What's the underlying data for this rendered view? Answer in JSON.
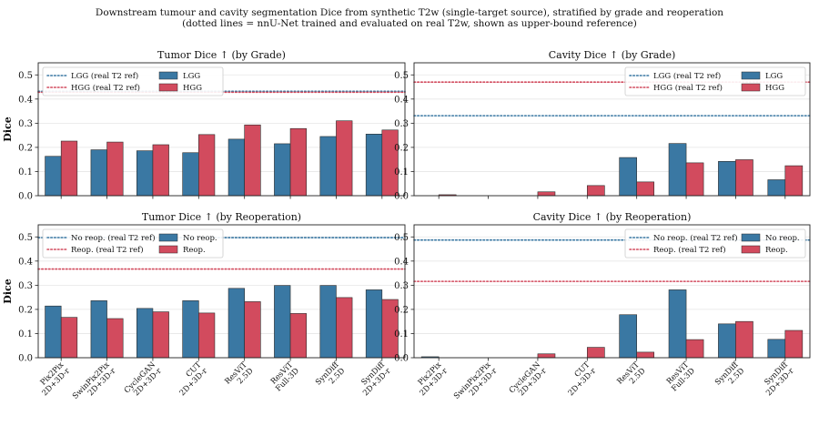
{
  "figure": {
    "title_line1": "Downstream tumour and cavity segmentation Dice from synthetic T2w (single-target source), stratified by grade and reoperation",
    "title_line2": "(dotted lines = nnU-Net trained and evaluated on real T2w, shown as upper-bound reference)"
  },
  "colors": {
    "blue": "#3a78a3",
    "red": "#d24b5e"
  },
  "chart_data": [
    {
      "type": "bar",
      "title": "Tumor Dice ↑  (by Grade)",
      "ylabel": "Dice",
      "ylim": [
        0,
        0.55
      ],
      "yticks": [
        "0.0",
        "0.1",
        "0.2",
        "0.3",
        "0.4",
        "0.5"
      ],
      "grid": true,
      "legend": "top-left",
      "categories": [
        "Pix2Pix\n2D+3D-r",
        "SwinPix2Pix\n2D+3D-r",
        "CycleGAN\n2D+3D-r",
        "CUT\n2D+3D-r",
        "ResViT\n2.5D",
        "ResViT\nFull-3D",
        "SynDiff\n2.5D",
        "SynDiff\n2D+3D-r"
      ],
      "show_xticklabels": false,
      "series": [
        {
          "name": "LGG",
          "color": "#3a78a3",
          "values": [
            0.163,
            0.19,
            0.186,
            0.178,
            0.234,
            0.215,
            0.245,
            0.255
          ]
        },
        {
          "name": "HGG",
          "color": "#d24b5e",
          "values": [
            0.226,
            0.222,
            0.211,
            0.253,
            0.293,
            0.278,
            0.31,
            0.272
          ]
        }
      ],
      "reference_lines": [
        {
          "name": "LGG (real T2 ref)",
          "value": 0.432,
          "color": "#3a78a3"
        },
        {
          "name": "HGG (real T2 ref)",
          "value": 0.428,
          "color": "#d24b5e"
        }
      ]
    },
    {
      "type": "bar",
      "title": "Cavity Dice ↑  (by Grade)",
      "ylabel": "",
      "ylim": [
        0,
        0.55
      ],
      "yticks": [
        "0.0",
        "0.1",
        "0.2",
        "0.3",
        "0.4",
        "0.5"
      ],
      "grid": true,
      "legend": "top-right",
      "categories": [
        "Pix2Pix\n2D+3D-r",
        "SwinPix2Pix\n2D+3D-r",
        "CycleGAN\n2D+3D-r",
        "CUT\n2D+3D-r",
        "ResViT\n2.5D",
        "ResViT\nFull-3D",
        "SynDiff\n2.5D",
        "SynDiff\n2D+3D-r"
      ],
      "show_xticklabels": false,
      "series": [
        {
          "name": "LGG",
          "color": "#3a78a3",
          "values": [
            0.0,
            0.0,
            0.0,
            0.0,
            0.158,
            0.216,
            0.142,
            0.066
          ]
        },
        {
          "name": "HGG",
          "color": "#d24b5e",
          "values": [
            0.004,
            0.0,
            0.016,
            0.042,
            0.057,
            0.136,
            0.149,
            0.124
          ]
        }
      ],
      "reference_lines": [
        {
          "name": "LGG (real T2 ref)",
          "value": 0.331,
          "color": "#3a78a3"
        },
        {
          "name": "HGG (real T2 ref)",
          "value": 0.47,
          "color": "#d24b5e"
        }
      ]
    },
    {
      "type": "bar",
      "title": "Tumor Dice ↑  (by Reoperation)",
      "ylabel": "Dice",
      "ylim": [
        0,
        0.55
      ],
      "yticks": [
        "0.0",
        "0.1",
        "0.2",
        "0.3",
        "0.4",
        "0.5"
      ],
      "grid": true,
      "legend": "top-left",
      "categories": [
        "Pix2Pix\n2D+3D-r",
        "SwinPix2Pix\n2D+3D-r",
        "CycleGAN\n2D+3D-r",
        "CUT\n2D+3D-r",
        "ResViT\n2.5D",
        "ResViT\nFull-3D",
        "SynDiff\n2.5D",
        "SynDiff\n2D+3D-r"
      ],
      "show_xticklabels": true,
      "series": [
        {
          "name": "No reop.",
          "color": "#3a78a3",
          "values": [
            0.214,
            0.236,
            0.204,
            0.236,
            0.287,
            0.299,
            0.299,
            0.281
          ]
        },
        {
          "name": "Reop.",
          "color": "#d24b5e",
          "values": [
            0.167,
            0.162,
            0.19,
            0.185,
            0.232,
            0.183,
            0.249,
            0.241
          ]
        }
      ],
      "reference_lines": [
        {
          "name": "No reop. (real T2 ref)",
          "value": 0.497,
          "color": "#3a78a3"
        },
        {
          "name": "Reop. (real T2 ref)",
          "value": 0.367,
          "color": "#d24b5e"
        }
      ]
    },
    {
      "type": "bar",
      "title": "Cavity Dice ↑  (by Reoperation)",
      "ylabel": "",
      "ylim": [
        0,
        0.55
      ],
      "yticks": [
        "0.0",
        "0.1",
        "0.2",
        "0.3",
        "0.4",
        "0.5"
      ],
      "grid": true,
      "legend": "top-right",
      "categories": [
        "Pix2Pix\n2D+3D-r",
        "SwinPix2Pix\n2D+3D-r",
        "CycleGAN\n2D+3D-r",
        "CUT\n2D+3D-r",
        "ResViT\n2.5D",
        "ResViT\nFull-3D",
        "SynDiff\n2.5D",
        "SynDiff\n2D+3D-r"
      ],
      "show_xticklabels": true,
      "series": [
        {
          "name": "No reop.",
          "color": "#3a78a3",
          "values": [
            0.004,
            0.0,
            0.0,
            0.0,
            0.178,
            0.281,
            0.14,
            0.076
          ]
        },
        {
          "name": "Reop.",
          "color": "#d24b5e",
          "values": [
            0.0,
            0.0,
            0.016,
            0.043,
            0.023,
            0.075,
            0.15,
            0.113
          ]
        }
      ],
      "reference_lines": [
        {
          "name": "No reop. (real T2 ref)",
          "value": 0.487,
          "color": "#3a78a3"
        },
        {
          "name": "Reop. (real T2 ref)",
          "value": 0.316,
          "color": "#d24b5e"
        }
      ]
    }
  ]
}
